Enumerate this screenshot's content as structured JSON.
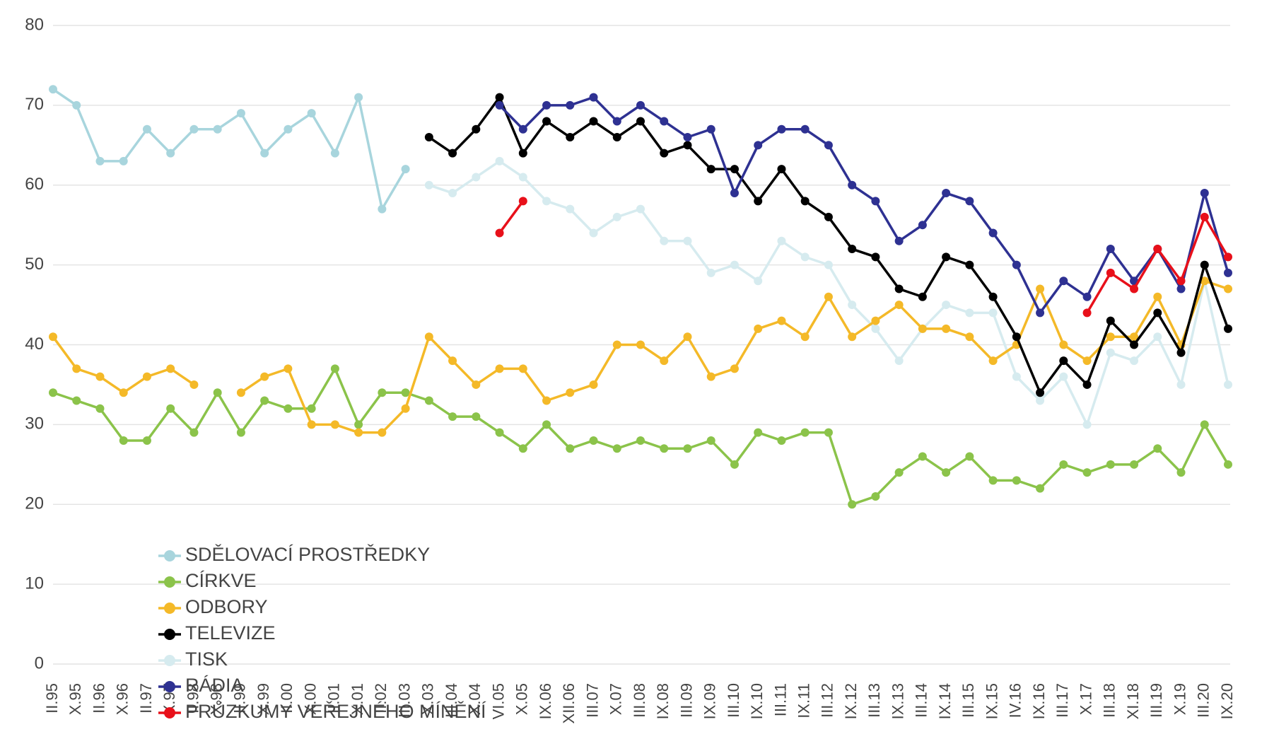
{
  "chart_data": {
    "type": "line",
    "categories": [
      "II.95",
      "X.95",
      "II.96",
      "X.96",
      "II.97",
      "X.97",
      "II.98",
      "X.98",
      "II.99",
      "X.99",
      "II.00",
      "X.00",
      "II.01",
      "X.01",
      "II.02",
      "III.03",
      "X.03",
      "III.04",
      "X.04",
      "VI.05",
      "X.05",
      "IX.06",
      "XII.06",
      "III.07",
      "X.07",
      "III.08",
      "IX.08",
      "III.09",
      "IX.09",
      "III.10",
      "IX.10",
      "III.11",
      "IX.11",
      "III.12",
      "IX.12",
      "III.13",
      "IX.13",
      "III.14",
      "IX.14",
      "III.15",
      "IX.15",
      "IV.16",
      "IX.16",
      "III.17",
      "X.17",
      "III.18",
      "XI.18",
      "III.19",
      "X.19",
      "III.20",
      "IX.20"
    ],
    "series": [
      {
        "name": "SDĚLOVACÍ PROSTŘEDKY",
        "color": "#a8d5dd",
        "values": [
          72,
          70,
          63,
          63,
          67,
          64,
          67,
          67,
          69,
          64,
          67,
          69,
          64,
          71,
          57,
          62,
          null,
          null,
          null,
          null,
          null,
          null,
          null,
          null,
          null,
          null,
          null,
          null,
          null,
          null,
          null,
          null,
          null,
          null,
          null,
          null,
          null,
          null,
          null,
          null,
          null,
          null,
          null,
          null,
          null,
          null,
          null,
          null,
          null,
          null,
          null
        ]
      },
      {
        "name": "CÍRKVE",
        "color": "#8bc34a",
        "values": [
          34,
          33,
          32,
          28,
          28,
          32,
          29,
          34,
          29,
          33,
          32,
          32,
          37,
          30,
          34,
          34,
          33,
          31,
          31,
          29,
          27,
          30,
          27,
          28,
          27,
          28,
          27,
          27,
          28,
          25,
          29,
          28,
          29,
          29,
          20,
          21,
          24,
          26,
          24,
          26,
          23,
          23,
          22,
          25,
          24,
          25,
          25,
          27,
          24,
          30,
          25
        ]
      },
      {
        "name": "ODBORY",
        "color": "#f4b928",
        "values": [
          41,
          37,
          36,
          34,
          36,
          37,
          35,
          null,
          34,
          36,
          37,
          30,
          30,
          29,
          29,
          32,
          41,
          38,
          35,
          37,
          37,
          33,
          34,
          35,
          40,
          40,
          38,
          41,
          36,
          37,
          42,
          43,
          41,
          46,
          41,
          43,
          45,
          42,
          42,
          41,
          38,
          40,
          47,
          40,
          38,
          41,
          41,
          46,
          40,
          48,
          47
        ]
      },
      {
        "name": "TELEVIZE",
        "color": "#000000",
        "values": [
          null,
          null,
          null,
          null,
          null,
          null,
          null,
          null,
          null,
          null,
          null,
          null,
          null,
          null,
          null,
          null,
          66,
          64,
          67,
          71,
          64,
          68,
          66,
          68,
          66,
          68,
          64,
          65,
          62,
          62,
          58,
          62,
          58,
          56,
          52,
          51,
          47,
          46,
          51,
          50,
          46,
          41,
          34,
          38,
          35,
          43,
          40,
          44,
          39,
          50,
          42
        ]
      },
      {
        "name": "TISK",
        "color": "#d6ebef",
        "values": [
          null,
          null,
          null,
          null,
          null,
          null,
          null,
          null,
          null,
          null,
          null,
          null,
          null,
          null,
          null,
          null,
          60,
          59,
          61,
          63,
          61,
          58,
          57,
          54,
          56,
          57,
          53,
          53,
          49,
          50,
          48,
          53,
          51,
          50,
          45,
          42,
          38,
          42,
          45,
          44,
          44,
          36,
          33,
          36,
          30,
          39,
          38,
          41,
          35,
          48,
          35
        ]
      },
      {
        "name": "RÁDIA",
        "color": "#2e3192",
        "values": [
          null,
          null,
          null,
          null,
          null,
          null,
          null,
          null,
          null,
          null,
          null,
          null,
          null,
          null,
          null,
          null,
          null,
          null,
          null,
          70,
          67,
          70,
          70,
          71,
          68,
          70,
          68,
          66,
          67,
          59,
          65,
          67,
          67,
          65,
          60,
          58,
          53,
          55,
          59,
          58,
          54,
          50,
          44,
          48,
          46,
          52,
          48,
          52,
          47,
          59,
          49
        ]
      },
      {
        "name": "PRŮZKUMY VEŘEJNÉHO MÍNĚNÍ",
        "color": "#e8101a",
        "values": [
          null,
          null,
          null,
          null,
          null,
          null,
          null,
          null,
          null,
          null,
          null,
          null,
          null,
          null,
          null,
          null,
          null,
          null,
          null,
          54,
          58,
          null,
          null,
          null,
          null,
          null,
          null,
          null,
          null,
          null,
          null,
          null,
          null,
          null,
          null,
          null,
          null,
          null,
          null,
          null,
          null,
          null,
          null,
          null,
          44,
          49,
          47,
          52,
          48,
          56,
          51
        ]
      }
    ],
    "ylim": [
      0,
      80
    ],
    "yticks": [
      0,
      10,
      20,
      30,
      40,
      50,
      60,
      70,
      80
    ],
    "grid": true,
    "legend": "bottom-left"
  }
}
